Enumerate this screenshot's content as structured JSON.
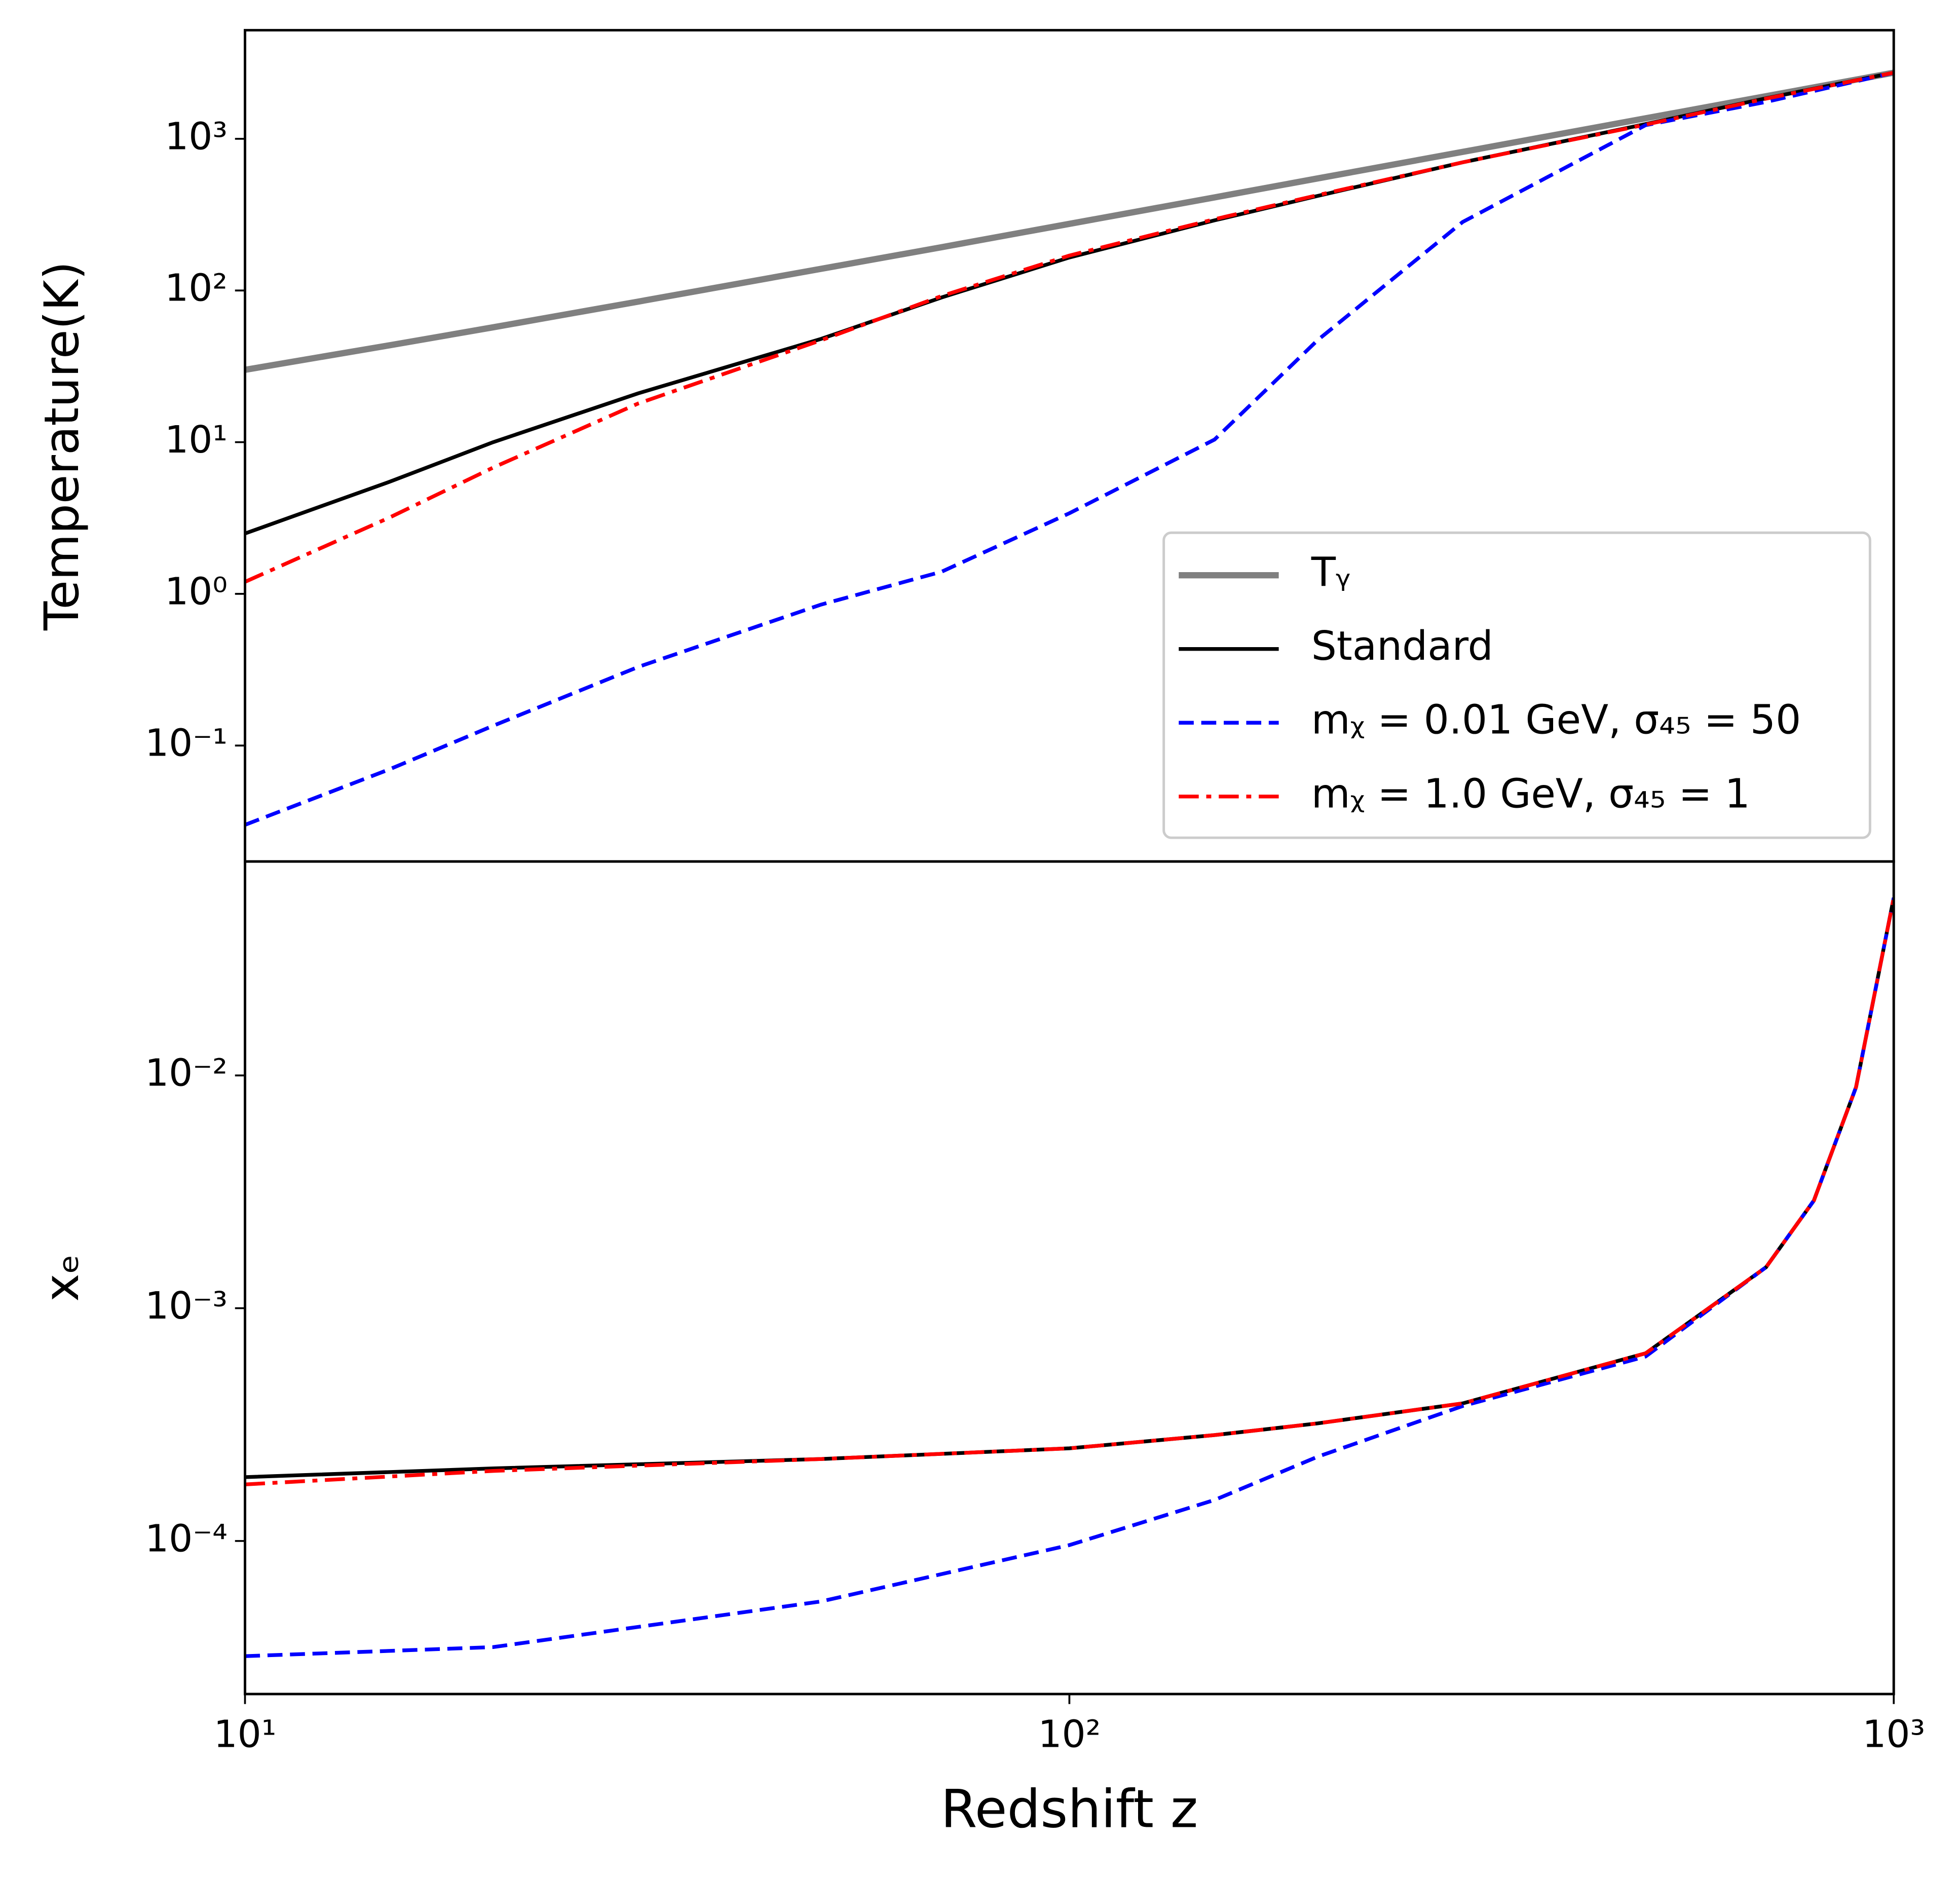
{
  "chart_data": [
    {
      "type": "line",
      "ylabel": "Temperature(K)",
      "log_x": true,
      "log_y": true,
      "xlim": [
        10,
        1000
      ],
      "ylim": [
        0.0172,
        5200
      ],
      "yticks": [
        {
          "value": 0.1,
          "label": "10⁻¹"
        },
        {
          "value": 1,
          "label": "10⁰"
        },
        {
          "value": 10,
          "label": "10¹"
        },
        {
          "value": 100,
          "label": "10²"
        },
        {
          "value": 1000,
          "label": "10³"
        }
      ],
      "legend": "lower right",
      "x": [
        10,
        15,
        20,
        30,
        50,
        70,
        100,
        150,
        200,
        300,
        500,
        700,
        1000
      ],
      "series": [
        {
          "name": "Tᵧ",
          "color": "#808080",
          "style": "solid",
          "width": 5,
          "values": [
            30.0,
            43.6,
            57.2,
            84.5,
            139,
            193,
            275,
            411,
            548,
            820,
            1365,
            1910,
            2728
          ]
        },
        {
          "name": "Standard",
          "color": "#000000",
          "style": "solid",
          "width": 3,
          "values": [
            2.5,
            5.5,
            10,
            21,
            48,
            90,
            165,
            290,
            420,
            700,
            1250,
            1850,
            2728
          ]
        },
        {
          "name": "mᵪ = 0.01 GeV, σ₄₅ = 50",
          "color": "#0000ff",
          "style": "dashed",
          "width": 3,
          "values": [
            0.03,
            0.07,
            0.135,
            0.33,
            0.85,
            1.4,
            3.4,
            10.4,
            47,
            283,
            1230,
            1750,
            2728
          ]
        },
        {
          "name": "mᵪ = 1.0 GeV, σ₄₅ = 1",
          "color": "#ff0000",
          "style": "dashdot",
          "width": 3,
          "values": [
            1.2,
            3.2,
            6.8,
            18,
            47,
            92,
            170,
            295,
            425,
            700,
            1240,
            1840,
            2728
          ]
        }
      ]
    },
    {
      "type": "line",
      "ylabel": "xₑ",
      "xlabel": "Redshift z",
      "log_x": true,
      "log_y": true,
      "xlim": [
        10,
        1000
      ],
      "ylim": [
        2.2e-05,
        0.083
      ],
      "xticks": [
        {
          "value": 10,
          "label": "10¹"
        },
        {
          "value": 100,
          "label": "10²"
        },
        {
          "value": 1000,
          "label": "10³"
        }
      ],
      "yticks": [
        {
          "value": 0.0001,
          "label": "10⁻⁴"
        },
        {
          "value": 0.001,
          "label": "10⁻³"
        },
        {
          "value": 0.01,
          "label": "10⁻²"
        }
      ],
      "x": [
        10,
        20,
        50,
        100,
        150,
        200,
        300,
        500,
        700,
        800,
        900,
        1000
      ],
      "series": [
        {
          "color": "#000000",
          "style": "solid",
          "width": 3,
          "values": [
            0.000188,
            0.000205,
            0.000225,
            0.00025,
            0.000285,
            0.00032,
            0.00039,
            0.00064,
            0.0015,
            0.0029,
            0.0089,
            0.058
          ]
        },
        {
          "color": "#0000ff",
          "style": "dashed",
          "width": 3,
          "values": [
            3.2e-05,
            3.5e-05,
            5.5e-05,
            9.6e-05,
            0.00015,
            0.00023,
            0.00038,
            0.00062,
            0.0015,
            0.0029,
            0.0089,
            0.058
          ]
        },
        {
          "color": "#ff0000",
          "style": "dashdot",
          "width": 3,
          "values": [
            0.000175,
            0.0002,
            0.000225,
            0.00025,
            0.000285,
            0.00032,
            0.00039,
            0.00064,
            0.0015,
            0.0029,
            0.0089,
            0.058
          ]
        }
      ]
    }
  ]
}
